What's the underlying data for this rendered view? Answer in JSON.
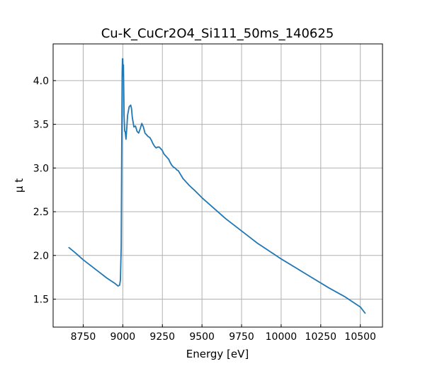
{
  "chart_data": {
    "type": "line",
    "title": "Cu-K_CuCr2O4_Si111_50ms_140625",
    "xlabel": "Energy [eV]",
    "ylabel": "μ t",
    "xlim": [
      8560,
      10640
    ],
    "ylim": [
      1.18,
      4.42
    ],
    "x_ticks": [
      8750,
      9000,
      9250,
      9500,
      9750,
      10000,
      10250,
      10500
    ],
    "y_ticks": [
      1.5,
      2.0,
      2.5,
      3.0,
      3.5,
      4.0
    ],
    "x_tick_labels": [
      "8750",
      "9000",
      "9250",
      "9500",
      "9750",
      "10000",
      "10250",
      "10500"
    ],
    "y_tick_labels": [
      "1.5",
      "2.0",
      "2.5",
      "3.0",
      "3.5",
      "4.0"
    ],
    "grid": true,
    "tick_direction": "in",
    "series": [
      {
        "color": "#1f77b4",
        "x": [
          8660,
          8700,
          8750,
          8800,
          8850,
          8900,
          8950,
          8970,
          8980,
          8985,
          8990,
          8993,
          8996,
          8998,
          9000,
          9002,
          9004,
          9006,
          9008,
          9012,
          9015,
          9020,
          9025,
          9030,
          9040,
          9050,
          9055,
          9060,
          9070,
          9080,
          9090,
          9100,
          9110,
          9120,
          9130,
          9140,
          9150,
          9160,
          9170,
          9180,
          9190,
          9200,
          9210,
          9220,
          9230,
          9240,
          9250,
          9260,
          9270,
          9280,
          9290,
          9300,
          9310,
          9320,
          9330,
          9340,
          9350,
          9360,
          9380,
          9400,
          9420,
          9450,
          9500,
          9550,
          9600,
          9650,
          9700,
          9750,
          9800,
          9850,
          9900,
          9950,
          10000,
          10100,
          10200,
          10300,
          10400,
          10500,
          10530
        ],
        "y": [
          2.09,
          2.03,
          1.95,
          1.88,
          1.81,
          1.74,
          1.68,
          1.65,
          1.66,
          1.72,
          2.1,
          3.2,
          4.1,
          4.25,
          4.25,
          4.05,
          4.18,
          3.9,
          3.6,
          3.42,
          3.42,
          3.33,
          3.45,
          3.6,
          3.7,
          3.72,
          3.68,
          3.58,
          3.47,
          3.48,
          3.42,
          3.4,
          3.45,
          3.51,
          3.47,
          3.4,
          3.38,
          3.36,
          3.35,
          3.32,
          3.28,
          3.25,
          3.23,
          3.24,
          3.24,
          3.22,
          3.2,
          3.16,
          3.14,
          3.12,
          3.1,
          3.06,
          3.03,
          3.01,
          3.0,
          2.98,
          2.97,
          2.94,
          2.88,
          2.84,
          2.8,
          2.75,
          2.66,
          2.58,
          2.5,
          2.42,
          2.35,
          2.28,
          2.21,
          2.14,
          2.08,
          2.02,
          1.96,
          1.85,
          1.74,
          1.63,
          1.53,
          1.41,
          1.34
        ]
      }
    ]
  }
}
